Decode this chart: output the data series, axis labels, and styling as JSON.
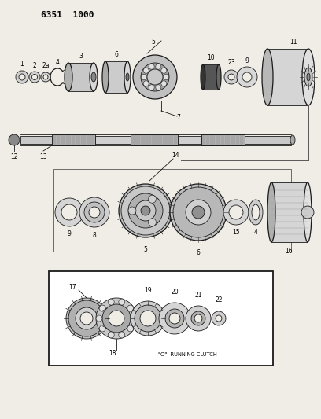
{
  "title": "6351  1000",
  "bg_color": "#f0ede6",
  "line_color": "#1a1a1a",
  "fig_width": 4.08,
  "fig_height": 5.33,
  "dpi": 100
}
